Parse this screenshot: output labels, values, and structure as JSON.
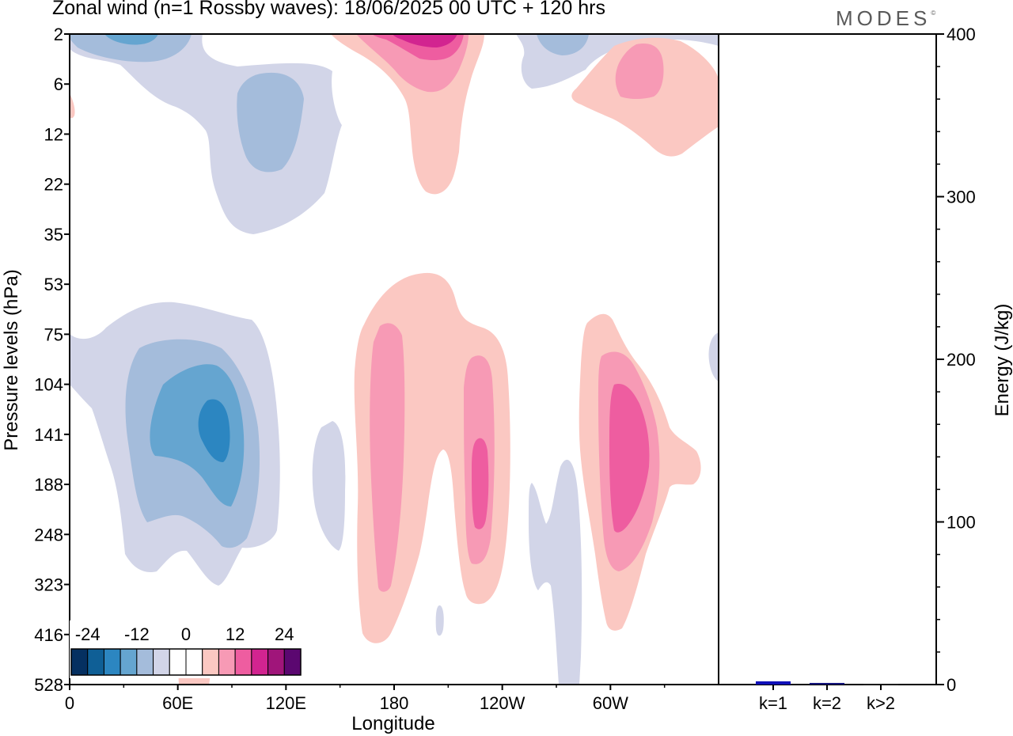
{
  "header": {
    "title": "Zonal wind (n=1 Rossby waves):  18/06/2025  00 UTC  + 120 hrs",
    "logo": "MODES",
    "logo_mark": "©"
  },
  "chart_data": [
    {
      "type": "heatmap",
      "title": "Zonal wind (n=1 Rossby waves):  18/06/2025  00 UTC  + 120 hrs",
      "xlabel": "Longitude",
      "ylabel": "Pressure levels (hPa)",
      "x_ticks": [
        {
          "lon": 0,
          "label": "0"
        },
        {
          "lon": 60,
          "label": "60E"
        },
        {
          "lon": 120,
          "label": "120E"
        },
        {
          "lon": 180,
          "label": "180"
        },
        {
          "lon": 240,
          "label": "120W"
        },
        {
          "lon": 300,
          "label": "60W"
        }
      ],
      "xlim": [
        0,
        360
      ],
      "y_levels": [
        "2",
        "6",
        "12",
        "22",
        "35",
        "53",
        "75",
        "104",
        "141",
        "188",
        "248",
        "323",
        "416",
        "528"
      ],
      "ylim": [
        "2",
        "528"
      ],
      "grid": false,
      "colorbar": {
        "labels": [
          "-24",
          "-12",
          "0",
          "12",
          "24"
        ],
        "location": "bottom-left",
        "colors": [
          "#053061",
          "#0f5f96",
          "#2c86c1",
          "#65a5d0",
          "#a4bcdb",
          "#d2d5e8",
          "#ffffff",
          "#ffffff",
          "#fbc8c2",
          "#f79ab5",
          "#ee5da0",
          "#d22490",
          "#a0157a",
          "#5b0770"
        ]
      },
      "features": [
        {
          "lon_center": 25,
          "level": "2",
          "shade": 3,
          "sign": "easterly"
        },
        {
          "lon_center": 100,
          "level": "12",
          "shade": 2,
          "sign": "easterly"
        },
        {
          "lon_center": 80,
          "level": "141",
          "shade": 4,
          "sign": "easterly"
        },
        {
          "lon_center": 190,
          "level": "2",
          "shade": 5,
          "sign": "westerly"
        },
        {
          "lon_center": 322,
          "level": "6",
          "shade": 2,
          "sign": "westerly"
        },
        {
          "lon_center": 180,
          "level": "141",
          "shade": 2,
          "sign": "westerly"
        },
        {
          "lon_center": 227,
          "level": "188",
          "shade": 3,
          "sign": "westerly"
        },
        {
          "lon_center": 308,
          "level": "141",
          "shade": 3,
          "sign": "westerly"
        }
      ]
    },
    {
      "type": "bar",
      "categories": [
        "k=1",
        "k=2",
        "k>2"
      ],
      "values": [
        2,
        1,
        0.5
      ],
      "ylabel": "Energy (J/kg)",
      "ylim": [
        0,
        400
      ],
      "y_ticks": [
        "0",
        "100",
        "200",
        "300",
        "400"
      ],
      "colors": [
        "#1010b8",
        "#10107a",
        "#222222"
      ]
    }
  ]
}
